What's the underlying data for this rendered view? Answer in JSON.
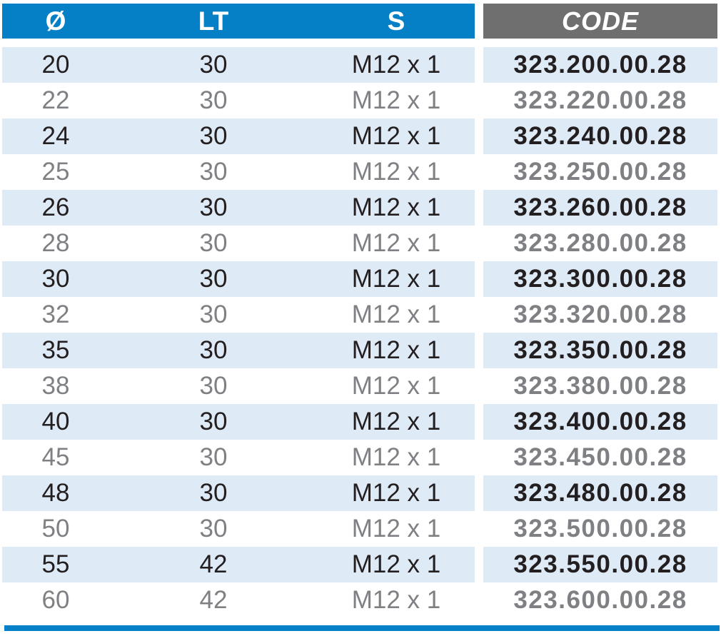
{
  "colors": {
    "header_blue": "#0580C6",
    "header_gray": "#6F6F6F",
    "row_shaded_blue": "#DFEAF7",
    "row_white": "#FFFFFF",
    "text_dark": "#231F20",
    "text_gray": "#7E8083",
    "header_text": "#FFFFFF",
    "bottom_bar_blue": "#0580C6"
  },
  "table": {
    "headers": {
      "diameter": "Ø",
      "lt": "LT",
      "s": "S",
      "code": "CODE"
    },
    "rows": [
      {
        "diameter": "20",
        "lt": "30",
        "s": "M12 x 1",
        "code": "323.200.00.28"
      },
      {
        "diameter": "22",
        "lt": "30",
        "s": "M12 x 1",
        "code": "323.220.00.28"
      },
      {
        "diameter": "24",
        "lt": "30",
        "s": "M12 x 1",
        "code": "323.240.00.28"
      },
      {
        "diameter": "25",
        "lt": "30",
        "s": "M12 x 1",
        "code": "323.250.00.28"
      },
      {
        "diameter": "26",
        "lt": "30",
        "s": "M12 x 1",
        "code": "323.260.00.28"
      },
      {
        "diameter": "28",
        "lt": "30",
        "s": "M12 x 1",
        "code": "323.280.00.28"
      },
      {
        "diameter": "30",
        "lt": "30",
        "s": "M12 x 1",
        "code": "323.300.00.28"
      },
      {
        "diameter": "32",
        "lt": "30",
        "s": "M12 x 1",
        "code": "323.320.00.28"
      },
      {
        "diameter": "35",
        "lt": "30",
        "s": "M12 x 1",
        "code": "323.350.00.28"
      },
      {
        "diameter": "38",
        "lt": "30",
        "s": "M12 x 1",
        "code": "323.380.00.28"
      },
      {
        "diameter": "40",
        "lt": "30",
        "s": "M12 x 1",
        "code": "323.400.00.28"
      },
      {
        "diameter": "45",
        "lt": "30",
        "s": "M12 x 1",
        "code": "323.450.00.28"
      },
      {
        "diameter": "48",
        "lt": "30",
        "s": "M12 x 1",
        "code": "323.480.00.28"
      },
      {
        "diameter": "50",
        "lt": "30",
        "s": "M12 x 1",
        "code": "323.500.00.28"
      },
      {
        "diameter": "55",
        "lt": "42",
        "s": "M12 x 1",
        "code": "323.550.00.28"
      },
      {
        "diameter": "60",
        "lt": "42",
        "s": "M12 x 1",
        "code": "323.600.00.28"
      }
    ]
  }
}
